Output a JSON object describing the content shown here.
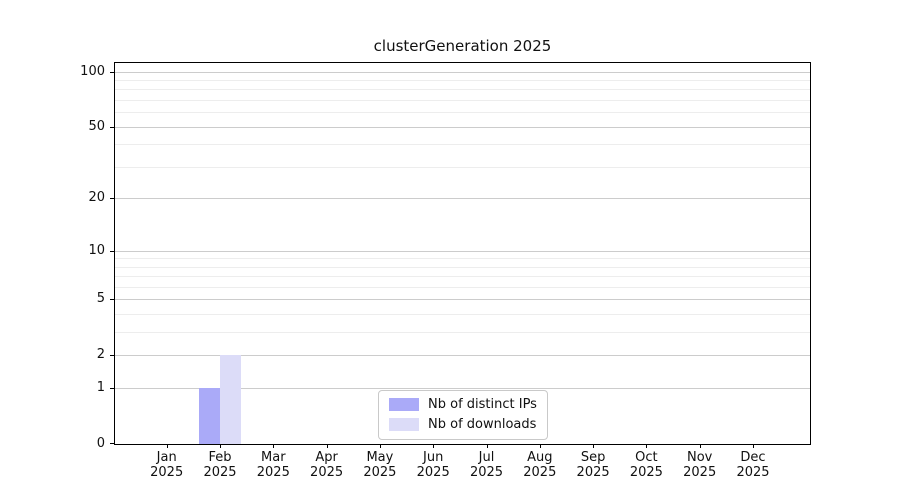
{
  "figure": {
    "background": "#ffffff"
  },
  "chart_data": {
    "type": "bar",
    "title": "clusterGeneration 2025",
    "categories": [
      "Jan",
      "Feb",
      "Mar",
      "Apr",
      "May",
      "Jun",
      "Jul",
      "Aug",
      "Sep",
      "Oct",
      "Nov",
      "Dec"
    ],
    "category_year": "2025",
    "series": [
      {
        "name": "Nb of distinct IPs",
        "color": "#aaaaf8",
        "values": [
          0,
          1,
          0,
          0,
          0,
          0,
          0,
          0,
          0,
          0,
          0,
          0
        ]
      },
      {
        "name": "Nb of downloads",
        "color": "#dcdcf8",
        "values": [
          0,
          2,
          0,
          0,
          0,
          0,
          0,
          0,
          0,
          0,
          0,
          0
        ]
      }
    ],
    "xlabel": "",
    "ylabel": "",
    "yscale": "log1p",
    "ylim": [
      0,
      113
    ],
    "ytick_values": [
      0,
      1,
      2,
      5,
      10,
      20,
      50,
      100
    ],
    "ytick_labels": [
      "0",
      "1",
      "2",
      "5",
      "10",
      "20",
      "50",
      "100"
    ],
    "major_grid_values": [
      1,
      2,
      5,
      10,
      20,
      50,
      100
    ],
    "minor_grid_values": [
      3,
      4,
      6,
      7,
      8,
      9,
      30,
      40,
      60,
      70,
      80,
      90
    ],
    "grid": true,
    "legend_position": "lower center",
    "colors": {
      "axis": "#000000",
      "major_grid": "#cccccc",
      "minor_grid": "#ededed",
      "text": "#111111",
      "legend_border": "#c9c9c9"
    }
  }
}
